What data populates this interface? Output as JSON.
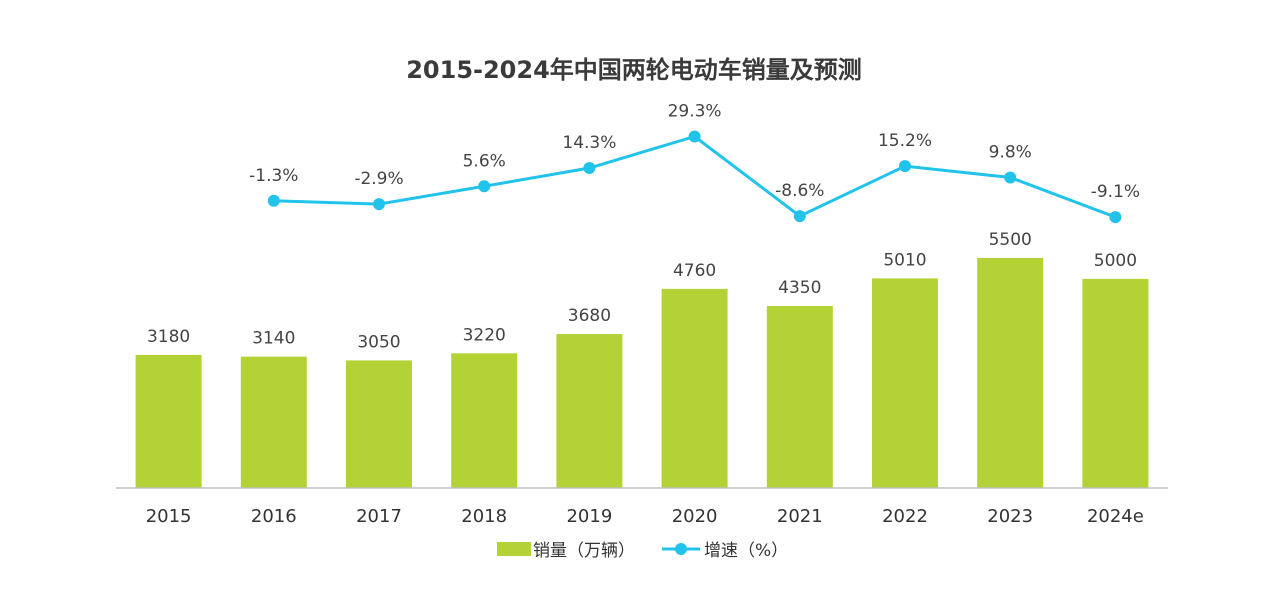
{
  "chart_data": {
    "type": "bar",
    "title": "2015-2024年中国两轮电动车销量及预测",
    "categories": [
      "2015",
      "2016",
      "2017",
      "2018",
      "2019",
      "2020",
      "2021",
      "2022",
      "2023",
      "2024e"
    ],
    "series": [
      {
        "name": "销量（万辆）",
        "type": "bar",
        "color": "#b2d235",
        "values": [
          3180,
          3140,
          3050,
          3220,
          3680,
          4760,
          4350,
          5010,
          5500,
          5000
        ],
        "labels": [
          "3180",
          "3140",
          "3050",
          "3220",
          "3680",
          "4760",
          "4350",
          "5010",
          "5500",
          "5000"
        ]
      },
      {
        "name": "增速（%）",
        "type": "line",
        "color": "#22c3eb",
        "values": [
          null,
          -1.3,
          -2.9,
          5.6,
          14.3,
          29.3,
          -8.6,
          15.2,
          9.8,
          -9.1
        ],
        "labels": [
          null,
          "-1.3%",
          "-2.9%",
          "5.6%",
          "14.3%",
          "29.3%",
          "-8.6%",
          "15.2%",
          "9.8%",
          "-9.1%"
        ]
      }
    ],
    "ylim_bar": [
      0,
      6000
    ],
    "ylim_line": [
      -30,
      50
    ],
    "grid": false,
    "legend_position": "bottom",
    "xlabel": "",
    "ylabel": ""
  }
}
